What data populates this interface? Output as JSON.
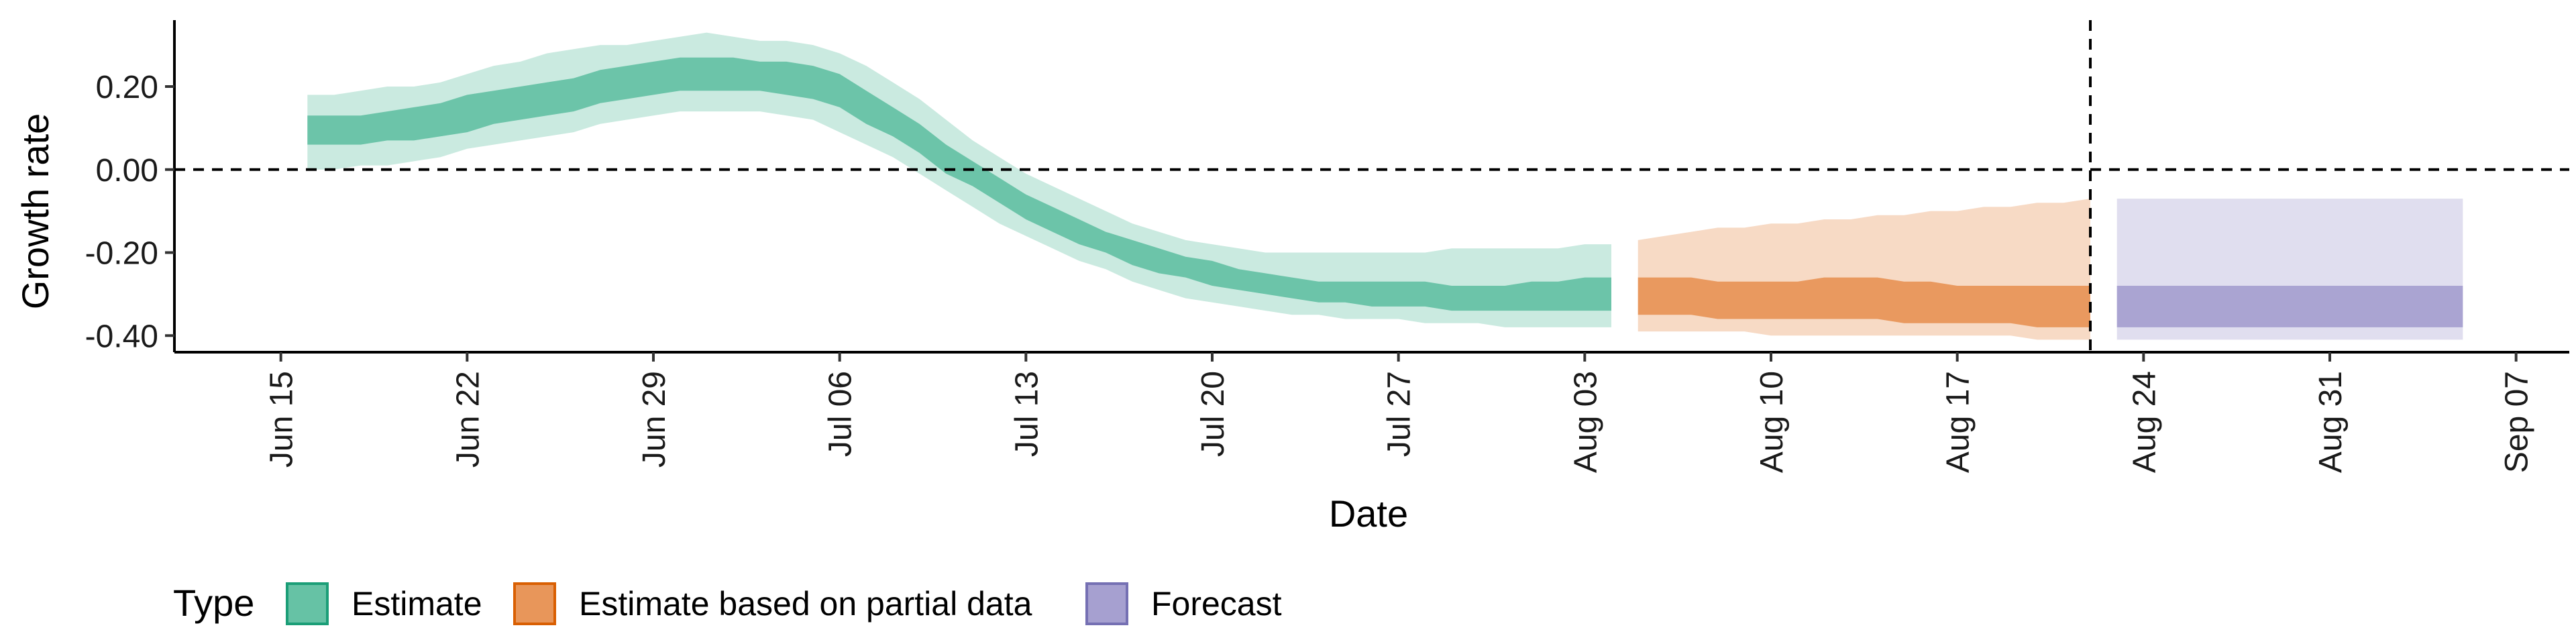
{
  "chart_data": {
    "type": "area",
    "xlabel": "Date",
    "ylabel": "Growth rate",
    "ylim": [
      -0.44,
      0.36
    ],
    "xlim": [
      "2020-06-11",
      "2020-09-09"
    ],
    "y_ticks": [
      0.2,
      0.0,
      -0.2,
      -0.4
    ],
    "y_tick_labels": [
      "0.20",
      "0.00",
      "-0.20",
      "-0.40"
    ],
    "x_ticks": [
      "2020-06-15",
      "2020-06-22",
      "2020-06-29",
      "2020-07-06",
      "2020-07-13",
      "2020-07-20",
      "2020-07-27",
      "2020-08-03",
      "2020-08-10",
      "2020-08-17",
      "2020-08-24",
      "2020-08-31",
      "2020-09-07"
    ],
    "x_tick_labels": [
      "Jun 15",
      "Jun 22",
      "Jun 29",
      "Jul 06",
      "Jul 13",
      "Jul 20",
      "Jul 27",
      "Aug 03",
      "Aug 10",
      "Aug 17",
      "Aug 24",
      "Aug 31",
      "Sep 07"
    ],
    "reference_lines": {
      "horizontal_y": 0.0,
      "vertical_x": "2020-08-22"
    },
    "grid": false,
    "legend": {
      "title": "Type",
      "placement": "bottom",
      "items": [
        {
          "label": "Estimate",
          "fill": "#66c2a5",
          "stroke": "#1b9e77"
        },
        {
          "label": "Estimate based on partial data",
          "fill": "#e8965a",
          "stroke": "#d95f02"
        },
        {
          "label": "Forecast",
          "fill": "#a6a0d0",
          "stroke": "#7570b3"
        }
      ]
    },
    "series": [
      {
        "name": "Estimate",
        "color": "#66c2a5",
        "x": [
          "2020-06-16",
          "2020-06-17",
          "2020-06-18",
          "2020-06-19",
          "2020-06-20",
          "2020-06-21",
          "2020-06-22",
          "2020-06-23",
          "2020-06-24",
          "2020-06-25",
          "2020-06-26",
          "2020-06-27",
          "2020-06-28",
          "2020-06-29",
          "2020-06-30",
          "2020-07-01",
          "2020-07-02",
          "2020-07-03",
          "2020-07-04",
          "2020-07-05",
          "2020-07-06",
          "2020-07-07",
          "2020-07-08",
          "2020-07-09",
          "2020-07-10",
          "2020-07-11",
          "2020-07-12",
          "2020-07-13",
          "2020-07-14",
          "2020-07-15",
          "2020-07-16",
          "2020-07-17",
          "2020-07-18",
          "2020-07-19",
          "2020-07-20",
          "2020-07-21",
          "2020-07-22",
          "2020-07-23",
          "2020-07-24",
          "2020-07-25",
          "2020-07-26",
          "2020-07-27",
          "2020-07-28",
          "2020-07-29",
          "2020-07-30",
          "2020-07-31",
          "2020-08-01",
          "2020-08-02",
          "2020-08-03",
          "2020-08-04"
        ],
        "upper90": [
          0.18,
          0.18,
          0.19,
          0.2,
          0.2,
          0.21,
          0.23,
          0.25,
          0.26,
          0.28,
          0.29,
          0.3,
          0.3,
          0.31,
          0.32,
          0.33,
          0.32,
          0.31,
          0.31,
          0.3,
          0.28,
          0.25,
          0.21,
          0.17,
          0.12,
          0.07,
          0.03,
          -0.01,
          -0.04,
          -0.07,
          -0.1,
          -0.13,
          -0.15,
          -0.17,
          -0.18,
          -0.19,
          -0.2,
          -0.2,
          -0.2,
          -0.2,
          -0.2,
          -0.2,
          -0.2,
          -0.19,
          -0.19,
          -0.19,
          -0.19,
          -0.19,
          -0.18,
          -0.18
        ],
        "upper50": [
          0.13,
          0.13,
          0.13,
          0.14,
          0.15,
          0.16,
          0.18,
          0.19,
          0.2,
          0.21,
          0.22,
          0.24,
          0.25,
          0.26,
          0.27,
          0.27,
          0.27,
          0.26,
          0.26,
          0.25,
          0.23,
          0.19,
          0.15,
          0.11,
          0.06,
          0.02,
          -0.02,
          -0.06,
          -0.09,
          -0.12,
          -0.15,
          -0.17,
          -0.19,
          -0.21,
          -0.22,
          -0.24,
          -0.25,
          -0.26,
          -0.27,
          -0.27,
          -0.27,
          -0.27,
          -0.27,
          -0.28,
          -0.28,
          -0.28,
          -0.27,
          -0.27,
          -0.26,
          -0.26
        ],
        "lower50": [
          0.06,
          0.06,
          0.06,
          0.07,
          0.07,
          0.08,
          0.09,
          0.11,
          0.12,
          0.13,
          0.14,
          0.16,
          0.17,
          0.18,
          0.19,
          0.19,
          0.19,
          0.19,
          0.18,
          0.17,
          0.15,
          0.11,
          0.08,
          0.04,
          -0.01,
          -0.04,
          -0.08,
          -0.12,
          -0.15,
          -0.18,
          -0.2,
          -0.23,
          -0.25,
          -0.26,
          -0.28,
          -0.29,
          -0.3,
          -0.31,
          -0.32,
          -0.32,
          -0.33,
          -0.33,
          -0.33,
          -0.34,
          -0.34,
          -0.34,
          -0.34,
          -0.34,
          -0.34,
          -0.34
        ],
        "lower90": [
          0.0,
          0.0,
          0.01,
          0.01,
          0.02,
          0.03,
          0.05,
          0.06,
          0.07,
          0.08,
          0.09,
          0.11,
          0.12,
          0.13,
          0.14,
          0.14,
          0.14,
          0.14,
          0.13,
          0.12,
          0.09,
          0.06,
          0.03,
          -0.01,
          -0.05,
          -0.09,
          -0.13,
          -0.16,
          -0.19,
          -0.22,
          -0.24,
          -0.27,
          -0.29,
          -0.31,
          -0.32,
          -0.33,
          -0.34,
          -0.35,
          -0.35,
          -0.36,
          -0.36,
          -0.36,
          -0.37,
          -0.37,
          -0.37,
          -0.38,
          -0.38,
          -0.38,
          -0.38,
          -0.38
        ]
      },
      {
        "name": "Estimate based on partial data",
        "color": "#e8965a",
        "x": [
          "2020-08-05",
          "2020-08-06",
          "2020-08-07",
          "2020-08-08",
          "2020-08-09",
          "2020-08-10",
          "2020-08-11",
          "2020-08-12",
          "2020-08-13",
          "2020-08-14",
          "2020-08-15",
          "2020-08-16",
          "2020-08-17",
          "2020-08-18",
          "2020-08-19",
          "2020-08-20",
          "2020-08-21",
          "2020-08-22"
        ],
        "upper90": [
          -0.17,
          -0.16,
          -0.15,
          -0.14,
          -0.14,
          -0.13,
          -0.13,
          -0.12,
          -0.12,
          -0.11,
          -0.11,
          -0.1,
          -0.1,
          -0.09,
          -0.09,
          -0.08,
          -0.08,
          -0.07
        ],
        "upper50": [
          -0.26,
          -0.26,
          -0.26,
          -0.27,
          -0.27,
          -0.27,
          -0.27,
          -0.26,
          -0.26,
          -0.26,
          -0.27,
          -0.27,
          -0.28,
          -0.28,
          -0.28,
          -0.28,
          -0.28,
          -0.28
        ],
        "lower50": [
          -0.35,
          -0.35,
          -0.35,
          -0.36,
          -0.36,
          -0.36,
          -0.36,
          -0.36,
          -0.36,
          -0.36,
          -0.37,
          -0.37,
          -0.37,
          -0.37,
          -0.37,
          -0.38,
          -0.38,
          -0.38
        ],
        "lower90": [
          -0.39,
          -0.39,
          -0.39,
          -0.39,
          -0.39,
          -0.4,
          -0.4,
          -0.4,
          -0.4,
          -0.4,
          -0.4,
          -0.4,
          -0.4,
          -0.4,
          -0.4,
          -0.41,
          -0.41,
          -0.41
        ]
      },
      {
        "name": "Forecast",
        "color": "#a6a0d0",
        "x": [
          "2020-08-23",
          "2020-09-05"
        ],
        "upper90": [
          -0.07,
          -0.07
        ],
        "upper50": [
          -0.28,
          -0.28
        ],
        "lower50": [
          -0.38,
          -0.38
        ],
        "lower90": [
          -0.41,
          -0.41
        ]
      }
    ]
  }
}
